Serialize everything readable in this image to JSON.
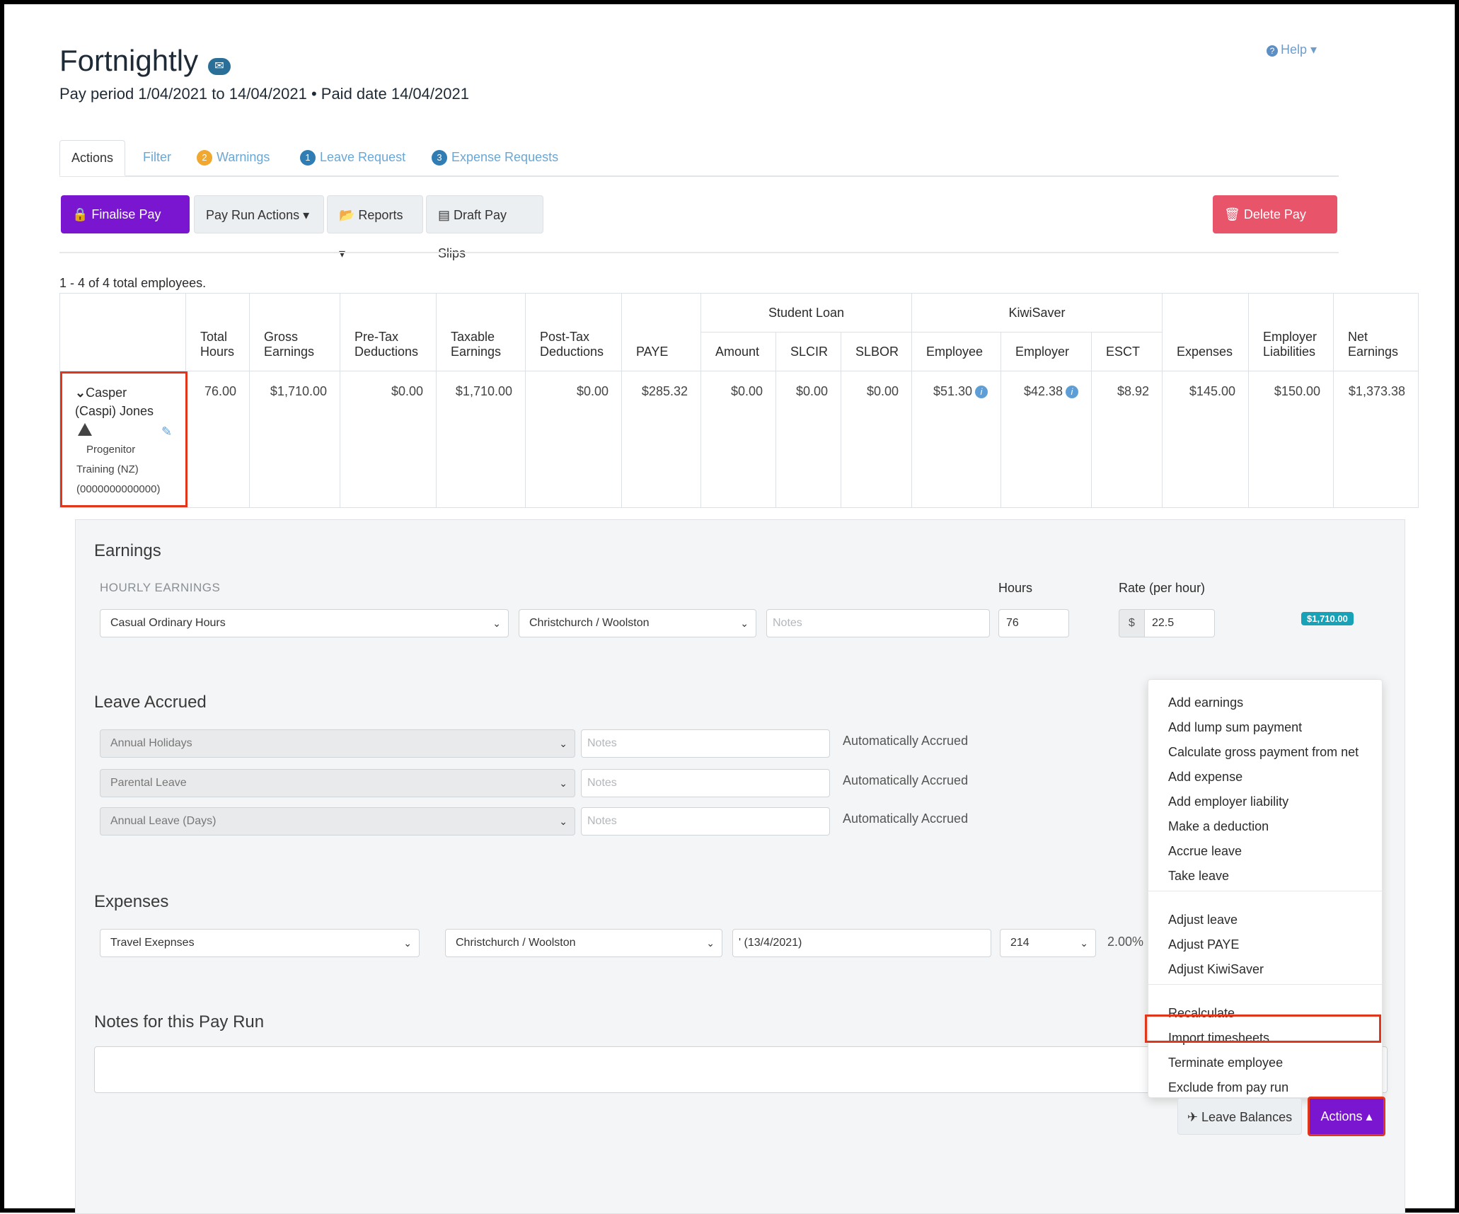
{
  "header": {
    "title": "Fortnightly",
    "subtitle": "Pay period 1/04/2021 to 14/04/2021 • Paid date 14/04/2021",
    "help_label": "Help ▾"
  },
  "tabs": {
    "actions": "Actions",
    "filter": "Filter",
    "warnings_count": "2",
    "warnings": "Warnings",
    "leave_count": "1",
    "leave": "Leave Request",
    "expense_count": "3",
    "expense": "Expense Requests"
  },
  "toolbar": {
    "finalise": "🔒 Finalise Pay Run",
    "pay_run_actions": "Pay Run Actions ▾",
    "reports": "📂 Reports ▾",
    "draft_pay_slips": "▤ Draft Pay Slips",
    "delete": "🗑 Delete Pay Run"
  },
  "summary": {
    "count_text": "1 - 4 of 4 total employees."
  },
  "table": {
    "headers": {
      "total_hours": "Total Hours",
      "gross_earnings": "Gross Earnings",
      "pre_tax": "Pre-Tax Deductions",
      "taxable": "Taxable Earnings",
      "post_tax": "Post-Tax Deductions",
      "paye": "PAYE",
      "student_loan": "Student Loan",
      "sl_amount": "Amount",
      "slcir": "SLCIR",
      "slbor": "SLBOR",
      "kiwisaver": "KiwiSaver",
      "ks_employee": "Employee",
      "ks_employer": "Employer",
      "esct": "ESCT",
      "expenses": "Expenses",
      "employer_liabilities": "Employer Liabilities",
      "net_earnings": "Net Earnings"
    },
    "row": {
      "name_line1": "Casper",
      "name_line2": "(Caspi) Jones",
      "org_line1": "Progenitor",
      "org_line2": "Training (NZ)",
      "org_line3": "(0000000000000)",
      "total_hours": "76.00",
      "gross_earnings": "$1,710.00",
      "pre_tax": "$0.00",
      "taxable": "$1,710.00",
      "post_tax": "$0.00",
      "paye": "$285.32",
      "sl_amount": "$0.00",
      "slcir": "$0.00",
      "slbor": "$0.00",
      "ks_employee": "$51.30",
      "ks_employer": "$42.38",
      "esct": "$8.92",
      "expenses": "$145.00",
      "employer_liabilities": "$150.00",
      "net_earnings": "$1,373.38"
    }
  },
  "earnings": {
    "title": "Earnings",
    "hourly_label": "HOURLY EARNINGS",
    "hours_label": "Hours",
    "rate_label": "Rate (per hour)",
    "pay_category": "Casual Ordinary Hours",
    "location": "Christchurch / Woolston",
    "notes_placeholder": "Notes",
    "hours": "76",
    "currency": "$",
    "rate": "22.5",
    "total_badge": "$1,710.00"
  },
  "leave": {
    "title": "Leave Accrued",
    "rows": [
      {
        "type": "Annual Holidays",
        "notes": "Notes",
        "status": "Automatically Accrued"
      },
      {
        "type": "Parental Leave",
        "notes": "Notes",
        "status": "Automatically Accrued"
      },
      {
        "type": "Annual Leave (Days)",
        "notes": "Notes",
        "status": "Automatically Accrued"
      }
    ]
  },
  "expenses": {
    "title": "Expenses",
    "category": "Travel Exepnses",
    "location": "Christchurch / Woolston",
    "notes": "' (13/4/2021)",
    "code": "214",
    "rate": "2.00%"
  },
  "notes_section": {
    "title": "Notes for this Pay Run"
  },
  "actions_menu": {
    "items": [
      "Add earnings",
      "Add lump sum payment",
      "Calculate gross payment from net",
      "Add expense",
      "Add employer liability",
      "Make a deduction",
      "Accrue leave",
      "Take leave",
      "Adjust leave",
      "Adjust PAYE",
      "Adjust KiwiSaver",
      "Recalculate",
      "Import timesheets",
      "Terminate employee",
      "Exclude from pay run"
    ]
  },
  "footer": {
    "leave_balances": "✈ Leave Balances",
    "actions": "Actions ▴"
  },
  "colors": {
    "primary_purple": "#7a16cf",
    "danger_red": "#e8546a",
    "highlight_red": "#e0361c",
    "badge_teal": "#17a2b8",
    "link_blue": "#6aa7d4"
  }
}
